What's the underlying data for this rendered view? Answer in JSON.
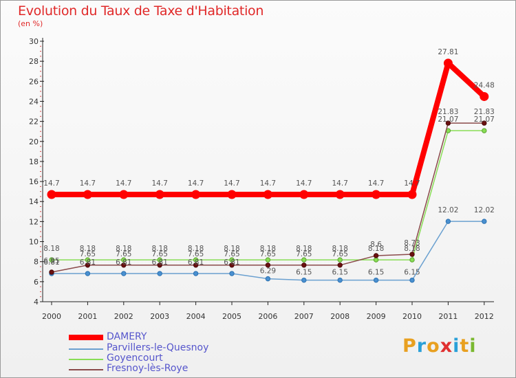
{
  "title": "Evolution du Taux de Taxe d'Habitation",
  "subtitle": "(en %)",
  "logo": {
    "letters": [
      "P",
      "r",
      "o",
      "x",
      "i",
      "t",
      "i"
    ],
    "colors": [
      "#e8a020",
      "#2aa0d8",
      "#e8a020",
      "#e03030",
      "#2aa0d8",
      "#e8a020",
      "#7ab830"
    ]
  },
  "chart_data": {
    "type": "line",
    "x": [
      "2000",
      "2001",
      "2002",
      "2003",
      "2004",
      "2005",
      "2006",
      "2007",
      "2008",
      "2009",
      "2010",
      "2011",
      "2012"
    ],
    "ylim": [
      4,
      30
    ],
    "yticks": [
      "4",
      "6",
      "8",
      "10",
      "12",
      "14",
      "16",
      "18",
      "20",
      "22",
      "24",
      "26",
      "28",
      "30"
    ],
    "grid": false,
    "legend_position": "bottom-left",
    "series": [
      {
        "name": "DAMERY",
        "color": "#ff0000",
        "values": [
          14.7,
          14.7,
          14.7,
          14.7,
          14.7,
          14.7,
          14.7,
          14.7,
          14.7,
          14.7,
          14.7,
          27.81,
          24.48
        ],
        "labels": [
          "14.7",
          "14.7",
          "14.7",
          "14.7",
          "14.7",
          "14.7",
          "14.7",
          "14.7",
          "14.7",
          "14.7",
          "14.7",
          "27.81",
          "24.48"
        ]
      },
      {
        "name": "Parvillers-le-Quesnoy",
        "color": "#6aa0d0",
        "values": [
          6.81,
          6.81,
          6.81,
          6.81,
          6.81,
          6.81,
          6.29,
          6.15,
          6.15,
          6.15,
          6.15,
          12.02,
          12.02
        ],
        "labels": [
          "6.81",
          "6.81",
          "6.81",
          "6.81",
          "6.81",
          "6.81",
          "6.29",
          "6.15",
          "6.15",
          "6.15",
          "6.15",
          "12.02",
          "12.02"
        ]
      },
      {
        "name": "Goyencourt",
        "color": "#88dd55",
        "values": [
          8.18,
          8.18,
          8.18,
          8.18,
          8.18,
          8.18,
          8.18,
          8.18,
          8.18,
          8.18,
          8.18,
          21.07,
          21.07
        ],
        "labels": [
          "8.18",
          "8.18",
          "8.18",
          "8.18",
          "8.18",
          "8.18",
          "8.18",
          "8.18",
          "8.18",
          "8.18",
          "8.18",
          "21.07",
          "21.07"
        ]
      },
      {
        "name": "Fresnoy-lès-Roye",
        "color": "#8a4a4a",
        "values": [
          6.95,
          7.65,
          7.65,
          7.65,
          7.65,
          7.65,
          7.65,
          7.65,
          7.65,
          8.6,
          8.73,
          21.83,
          21.83
        ],
        "labels": [
          "6.95",
          "7.65",
          "7.65",
          "7.65",
          "7.65",
          "7.65",
          "7.65",
          "7.65",
          "7.65",
          "8.6",
          "8.73",
          "21.83",
          "21.83"
        ]
      }
    ]
  }
}
